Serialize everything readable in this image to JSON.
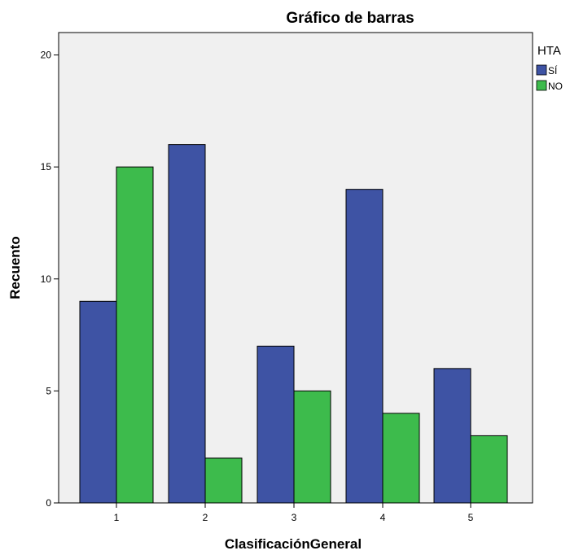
{
  "chart_data": {
    "type": "bar",
    "title": "Gráfico de barras",
    "xlabel": "ClasificaciónGeneral",
    "ylabel": "Recuento",
    "categories": [
      "1",
      "2",
      "3",
      "4",
      "5"
    ],
    "series": [
      {
        "name": "SÍ",
        "values": [
          9,
          16,
          7,
          14,
          6
        ],
        "color": "#3e53a4"
      },
      {
        "name": "NO",
        "values": [
          15,
          2,
          5,
          4,
          3
        ],
        "color": "#3dbb4c"
      }
    ],
    "ylim": [
      0,
      21
    ],
    "yticks": [
      0,
      5,
      10,
      15,
      20
    ],
    "grid": false,
    "legend": {
      "title": "HTA",
      "position": "top-right-outside"
    },
    "plot_background": "#f0f0f0"
  }
}
